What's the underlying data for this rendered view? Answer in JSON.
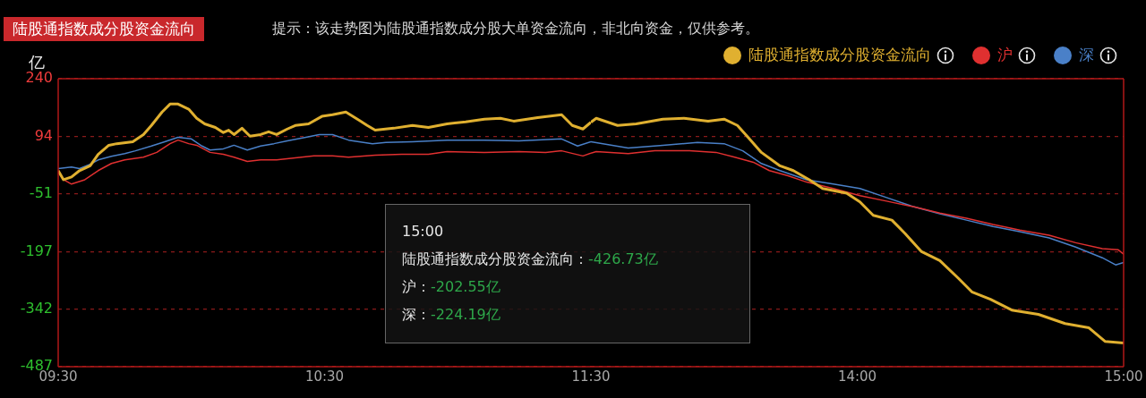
{
  "chart_data": [
    {
      "type": "line",
      "title": "陆股通指数成分股资金流向",
      "subtitle": "提示：该走势图为陆股通指数成分股大单资金流向，非北向资金，仅供参考。",
      "ylabel": "亿",
      "xlim": [
        9.5,
        11.5
      ],
      "xticks": [
        {
          "value": 9.5,
          "label": "09:30"
        },
        {
          "value": 10.5,
          "label": "10:30"
        },
        {
          "value": 11.5,
          "label": "11:30"
        }
      ],
      "ylim": [
        -487,
        240
      ],
      "yticks": [
        240,
        94,
        -51,
        -197,
        -342,
        -487
      ],
      "grid": "y",
      "marker": "none",
      "line_style": "solid",
      "series": [
        {
          "color": "#e0b030",
          "x": [
            9.5,
            9.52,
            9.55,
            9.58,
            9.62,
            9.65,
            9.69,
            9.72,
            9.78,
            9.82,
            9.85,
            9.89,
            9.92,
            9.95,
            9.99,
            10.02,
            10.05,
            10.09,
            10.12,
            10.14,
            10.16,
            10.19,
            10.22,
            10.26,
            10.29,
            10.32,
            10.36,
            10.39,
            10.44,
            10.49,
            10.53,
            10.58,
            10.63,
            10.66,
            10.69,
            10.76,
            10.83,
            10.89,
            10.96,
            11.03,
            11.1,
            11.16,
            11.21,
            11.3,
            11.39,
            11.43,
            11.47,
            11.5
          ],
          "values": [
            8,
            -15,
            -8,
            8,
            20,
            49,
            72,
            76,
            81,
            99,
            122,
            156,
            176,
            176,
            163,
            140,
            126,
            117,
            104,
            110,
            99,
            115,
            95,
            99,
            106,
            99,
            113,
            122,
            126,
            145,
            149,
            156,
            135,
            122,
            110,
            115,
            122,
            117,
            126,
            131,
            138,
            140,
            133,
            142,
            149,
            122,
            113,
            130
          ]
        },
        {
          "color": "#e03030",
          "x": [
            9.5,
            9.52,
            9.55,
            9.6,
            9.65,
            9.7,
            9.75,
            9.82,
            9.87,
            9.92,
            9.95,
            9.99,
            10.02,
            10.07,
            10.12,
            10.16,
            10.21,
            10.26,
            10.32,
            10.39,
            10.46,
            10.53,
            10.59,
            10.69,
            10.79,
            10.89,
            10.96,
            11.1,
            11.23,
            11.33,
            11.39,
            11.47,
            11.5
          ],
          "values": [
            4,
            -15,
            -26,
            -15,
            8,
            26,
            35,
            42,
            54,
            76,
            85,
            76,
            72,
            54,
            49,
            42,
            31,
            35,
            35,
            40,
            45,
            45,
            42,
            47,
            49,
            49,
            56,
            54,
            56,
            54,
            58,
            45,
            52
          ]
        },
        {
          "color": "#4a80c8",
          "x": [
            9.5,
            9.55,
            9.58,
            9.62,
            9.65,
            9.7,
            9.75,
            9.79,
            9.85,
            9.9,
            9.95,
            10,
            10.04,
            10.07,
            10.12,
            10.16,
            10.21,
            10.26,
            10.31,
            10.36,
            10.43,
            10.48,
            10.53,
            10.59,
            10.68,
            10.73,
            10.83,
            10.96,
            11.1,
            11.23,
            11.39,
            11.45,
            11.5
          ],
          "values": [
            13,
            17,
            13,
            24,
            35,
            44,
            51,
            58,
            70,
            81,
            92,
            88,
            70,
            60,
            63,
            72,
            60,
            70,
            76,
            83,
            92,
            99,
            99,
            85,
            76,
            79,
            81,
            85,
            85,
            83,
            88,
            70,
            81
          ]
        }
      ]
    },
    {
      "type": "line",
      "xlim": [
        13,
        15
      ],
      "xticks": [
        {
          "value": 14,
          "label": "14:00"
        },
        {
          "value": 15,
          "label": "15:00"
        }
      ],
      "ylim": [
        -487,
        240
      ],
      "yticks": [
        240,
        94,
        -51,
        -197,
        -342,
        -487
      ],
      "tick_labels": "x",
      "grid": "y",
      "legend": "top right",
      "marker": "none",
      "line_style": "solid",
      "annotations": [
        "15:00",
        "陆股通指数成分股资金流向：-426.73亿",
        "沪：-202.55亿",
        "深：-224.19亿"
      ],
      "series": [
        {
          "name": "陆股通指数成分股资金流向",
          "color": "#e0b030",
          "x": [
            13,
            13.02,
            13.1,
            13.17,
            13.27,
            13.35,
            13.44,
            13.5,
            13.55,
            13.59,
            13.64,
            13.71,
            13.76,
            13.82,
            13.87,
            13.96,
            14.01,
            14.06,
            14.13,
            14.18,
            14.24,
            14.31,
            14.38,
            14.43,
            14.5,
            14.58,
            14.68,
            14.78,
            14.87,
            14.93,
            15
          ],
          "values": [
            130,
            140,
            122,
            126,
            138,
            140,
            133,
            138,
            122,
            92,
            54,
            20,
            8,
            -15,
            -37,
            -49,
            -71,
            -105,
            -117,
            -151,
            -196,
            -219,
            -264,
            -298,
            -317,
            -344,
            -355,
            -378,
            -389,
            -423,
            -427
          ]
        },
        {
          "name": "沪",
          "color": "#e03030",
          "x": [
            13,
            13.02,
            13.14,
            13.24,
            13.37,
            13.47,
            13.54,
            13.61,
            13.67,
            13.74,
            13.81,
            13.91,
            14.01,
            14.11,
            14.21,
            14.31,
            14.41,
            14.51,
            14.61,
            14.72,
            14.82,
            14.92,
            14.98,
            15
          ],
          "values": [
            52,
            56,
            51,
            58,
            58,
            54,
            42,
            29,
            8,
            -5,
            -21,
            -37,
            -55,
            -69,
            -83,
            -99,
            -112,
            -128,
            -142,
            -155,
            -174,
            -189,
            -192,
            -203
          ]
        },
        {
          "name": "深",
          "color": "#4a80c8",
          "x": [
            13,
            13.14,
            13.27,
            13.4,
            13.5,
            13.57,
            13.64,
            13.71,
            13.81,
            13.91,
            14.01,
            14.11,
            14.21,
            14.31,
            14.41,
            14.51,
            14.61,
            14.72,
            14.82,
            14.92,
            14.97,
            15
          ],
          "values": [
            81,
            65,
            72,
            79,
            76,
            58,
            26,
            8,
            -15,
            -26,
            -37,
            -60,
            -83,
            -101,
            -117,
            -133,
            -146,
            -162,
            -185,
            -212,
            -230,
            -224
          ]
        }
      ]
    }
  ]
}
